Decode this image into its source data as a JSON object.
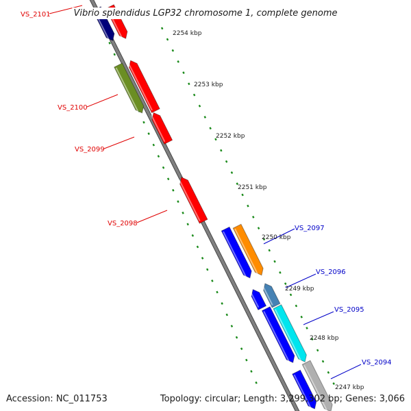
{
  "title": "Vibrio splendidus LGP32 chromosome 1, complete genome",
  "footer": {
    "accession": "Accession: NC_011753",
    "summary": "Topology: circular; Length: 3,299,302 bp; Genes: 3,066"
  },
  "ticks": [
    "2254 kbp",
    "2253 kbp",
    "2252 kbp",
    "2251 kbp",
    "2250 kbp",
    "2249 kbp",
    "2248 kbp",
    "2247 kbp"
  ],
  "gene_labels": {
    "left": [
      "VS_2101",
      "VS_2100",
      "VS_2099",
      "VS_2098"
    ],
    "right": [
      "VS_2097",
      "VS_2096",
      "VS_2095",
      "VS_2094"
    ]
  },
  "colors": {
    "reverse_label": "#e00000",
    "forward_label": "#0000c8",
    "backbone": "#808080",
    "dots": "#1a8a1a",
    "red": "#ff0000",
    "navy": "#00007a",
    "blue": "#0000ff",
    "olive": "#6b8e23",
    "orange": "#ff8c00",
    "cyan": "#00e5ee",
    "steel": "#4682b4",
    "grey": "#b0b0b0"
  }
}
